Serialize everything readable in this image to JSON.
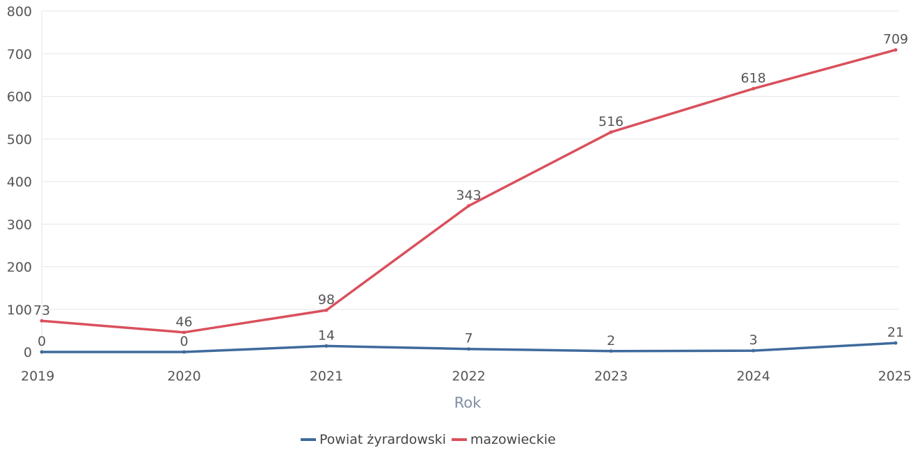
{
  "chart_data": {
    "type": "line",
    "title": "",
    "xlabel": "Rok",
    "ylabel": "",
    "categories": [
      "2019",
      "2020",
      "2021",
      "2022",
      "2023",
      "2024",
      "2025"
    ],
    "series": [
      {
        "name": "Powiat żyrardowski",
        "color": "#3f6a9c",
        "values": [
          0,
          0,
          14,
          7,
          2,
          3,
          21
        ],
        "labels": [
          "0",
          "0",
          "14",
          "7",
          "2",
          "3",
          "21"
        ]
      },
      {
        "name": "mazowieckie",
        "color": "#d9505c",
        "values": [
          73,
          46,
          98,
          343,
          516,
          618,
          709
        ],
        "labels": [
          "73",
          "46",
          "98",
          "343",
          "516",
          "618",
          "709"
        ]
      }
    ],
    "ylim": [
      0,
      800
    ],
    "yticks": [
      "0",
      "100",
      "200",
      "300",
      "400",
      "500",
      "600",
      "700",
      "800"
    ],
    "grid": true,
    "legend_position": "bottom-center"
  }
}
